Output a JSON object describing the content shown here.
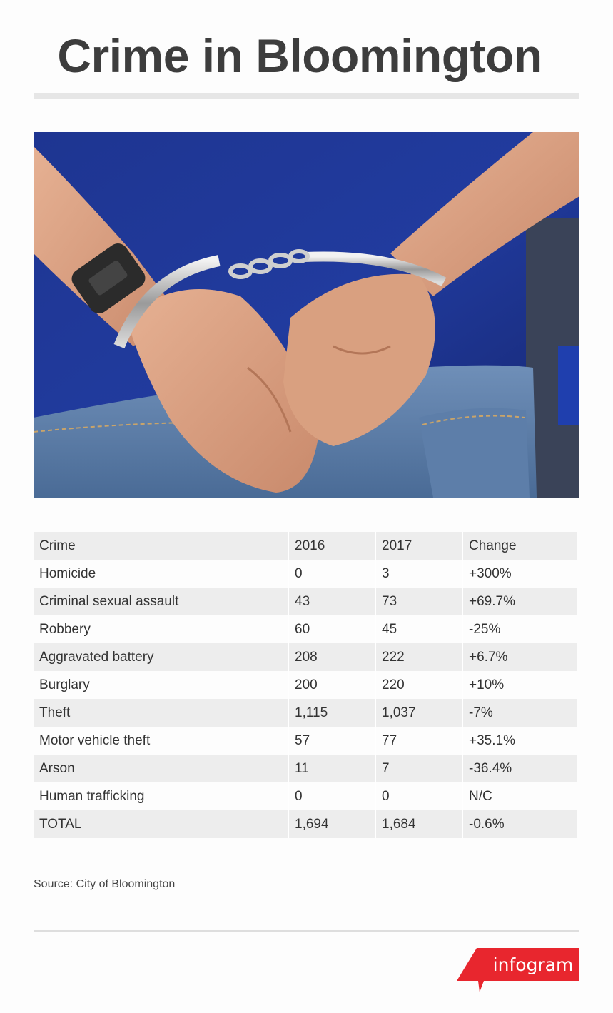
{
  "header": {
    "title": "Crime in Bloomington"
  },
  "photo": {
    "subject": "handcuffed-hands-photo"
  },
  "table": {
    "columns": [
      "Crime",
      "2016",
      "2017",
      "Change"
    ],
    "rows": [
      [
        "Homicide",
        "0",
        "3",
        "+300%"
      ],
      [
        "Criminal sexual assault",
        "43",
        "73",
        "+69.7%"
      ],
      [
        "Robbery",
        "60",
        "45",
        "-25%"
      ],
      [
        "Aggravated battery",
        "208",
        "222",
        "+6.7%"
      ],
      [
        "Burglary",
        "200",
        "220",
        "+10%"
      ],
      [
        "Theft",
        "1,115",
        "1,037",
        "-7%"
      ],
      [
        "Motor vehicle theft",
        "57",
        "77",
        "+35.1%"
      ],
      [
        "Arson",
        "11",
        "7",
        "-36.4%"
      ],
      [
        "Human trafficking",
        "0",
        "0",
        "N/C"
      ],
      [
        "TOTAL",
        "1,694",
        "1,684",
        "-0.6%"
      ]
    ]
  },
  "footer": {
    "source": "Source: City of Bloomington",
    "brand": "infogram"
  },
  "colors": {
    "brand_red": "#e8262e",
    "row_shade": "#ededed",
    "title_text": "#3d3d3d"
  }
}
